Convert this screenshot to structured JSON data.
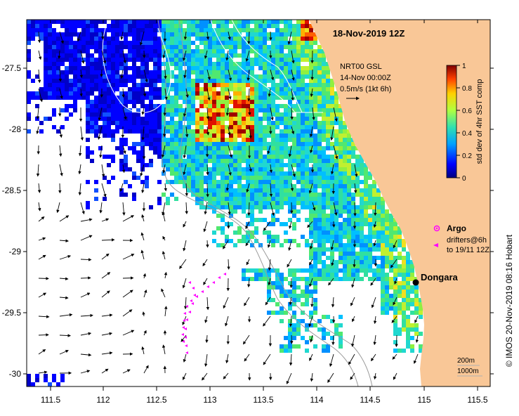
{
  "title": "18-Nov-2019 12Z",
  "current_info": {
    "line1": "NRT00 GSL",
    "line2": "14-Nov 00:00Z",
    "line3": "0.5m/s (1kt 6h)"
  },
  "colorbar": {
    "label": "std dev of 4hr SST comp",
    "ticks": [
      "0",
      "0.2",
      "0.4",
      "0.6",
      "0.8",
      "1"
    ]
  },
  "legend": {
    "argo": "Argo",
    "drifters_line1": "drifters@6h",
    "drifters_line2": "to 19/11 12Z"
  },
  "place": {
    "name": "Dongara"
  },
  "contours": {
    "c200": "200m",
    "c1000": "1000m"
  },
  "credit": "© IMOS 20-Nov-2019 08:16 Hobart",
  "axes": {
    "x_ticks": [
      "111.5",
      "112",
      "112.5",
      "113",
      "113.5",
      "114",
      "114.5",
      "115",
      "115.5"
    ],
    "y_ticks": [
      "-27.5",
      "-28",
      "-28.5",
      "-29",
      "-29.5",
      "-30"
    ]
  },
  "colors": {
    "land": "#f9c797",
    "arrow": "#000000",
    "drifter": "#ff00ff",
    "contour_shallow": "#9a9a9a",
    "contour_deep": "#ffffff"
  }
}
